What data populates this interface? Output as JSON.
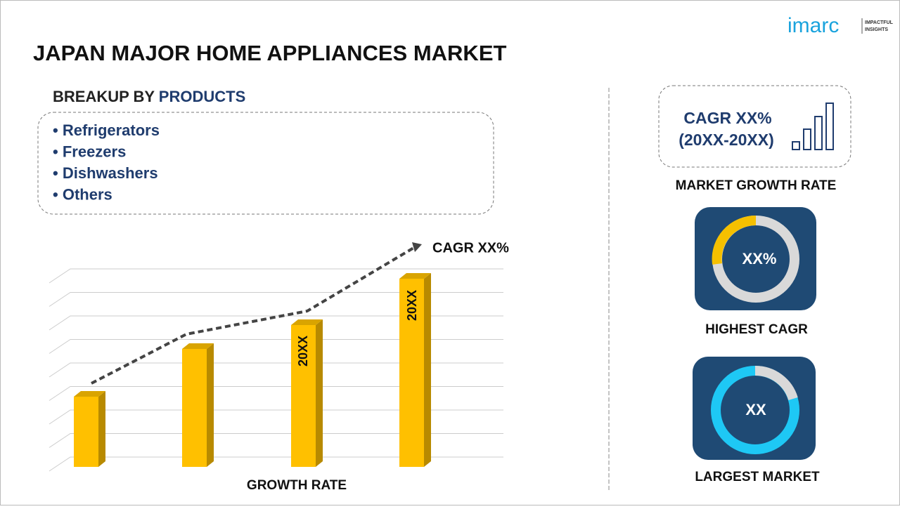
{
  "header": {
    "title": "JAPAN MAJOR HOME APPLIANCES MARKET",
    "logo": {
      "brand": "imarc",
      "tagline": [
        "IMPACTFUL",
        "INSIGHTS"
      ]
    }
  },
  "breakup": {
    "label": "BREAKUP BY",
    "highlight": "PRODUCTS",
    "bullet": "•",
    "items": [
      "Refrigerators",
      "Freezers",
      "Dishwashers",
      "Others"
    ]
  },
  "growth_chart": {
    "trend_label": "CAGR XX%",
    "bar_labels": [
      "20XX",
      "20XX"
    ],
    "caption": "GROWTH RATE"
  },
  "cards": [
    {
      "lines": [
        "CAGR XX%",
        "(20XX-20XX)"
      ],
      "caption": "MARKET GROWTH RATE"
    },
    {
      "center": "XX%",
      "caption": "HIGHEST CAGR"
    },
    {
      "center": "XX",
      "caption": "LARGEST MARKET"
    }
  ]
}
